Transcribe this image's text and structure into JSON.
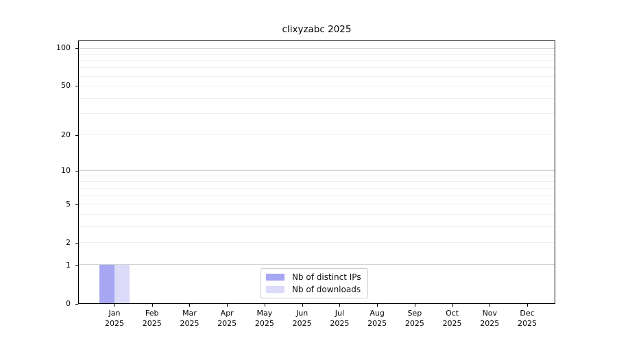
{
  "figure": {
    "title": "clixyzabc 2025"
  },
  "chart_data": {
    "type": "bar",
    "title": "clixyzabc 2025",
    "categories": [
      "Jan 2025",
      "Feb 2025",
      "Mar 2025",
      "Apr 2025",
      "May 2025",
      "Jun 2025",
      "Jul 2025",
      "Aug 2025",
      "Sep 2025",
      "Oct 2025",
      "Nov 2025",
      "Dec 2025"
    ],
    "x_tick_month": [
      "Jan",
      "Feb",
      "Mar",
      "Apr",
      "May",
      "Jun",
      "Jul",
      "Aug",
      "Sep",
      "Oct",
      "Nov",
      "Dec"
    ],
    "x_tick_year": "2025",
    "series": [
      {
        "name": "Nb of distinct IPs",
        "color": "#a6a6f3",
        "values": [
          1,
          0,
          0,
          0,
          0,
          0,
          0,
          0,
          0,
          0,
          0,
          0
        ]
      },
      {
        "name": "Nb of downloads",
        "color": "#dbdbf9",
        "values": [
          1,
          0,
          0,
          0,
          0,
          0,
          0,
          0,
          0,
          0,
          0,
          0
        ]
      }
    ],
    "yscale": "log1p",
    "ylim": [
      0,
      115
    ],
    "ytick_values": [
      0,
      1,
      2,
      5,
      10,
      20,
      50,
      100
    ],
    "ytick_labels": [
      "0",
      "1",
      "2",
      "5",
      "10",
      "20",
      "50",
      "100"
    ],
    "grid_major_values": [
      1,
      10,
      100
    ],
    "grid_minor_values": [
      2,
      3,
      4,
      5,
      6,
      7,
      8,
      9,
      20,
      30,
      40,
      50,
      60,
      70,
      80,
      90
    ],
    "grid": true,
    "legend_position": "lower-center",
    "legend_items": [
      "Nb of distinct IPs",
      "Nb of downloads"
    ]
  }
}
